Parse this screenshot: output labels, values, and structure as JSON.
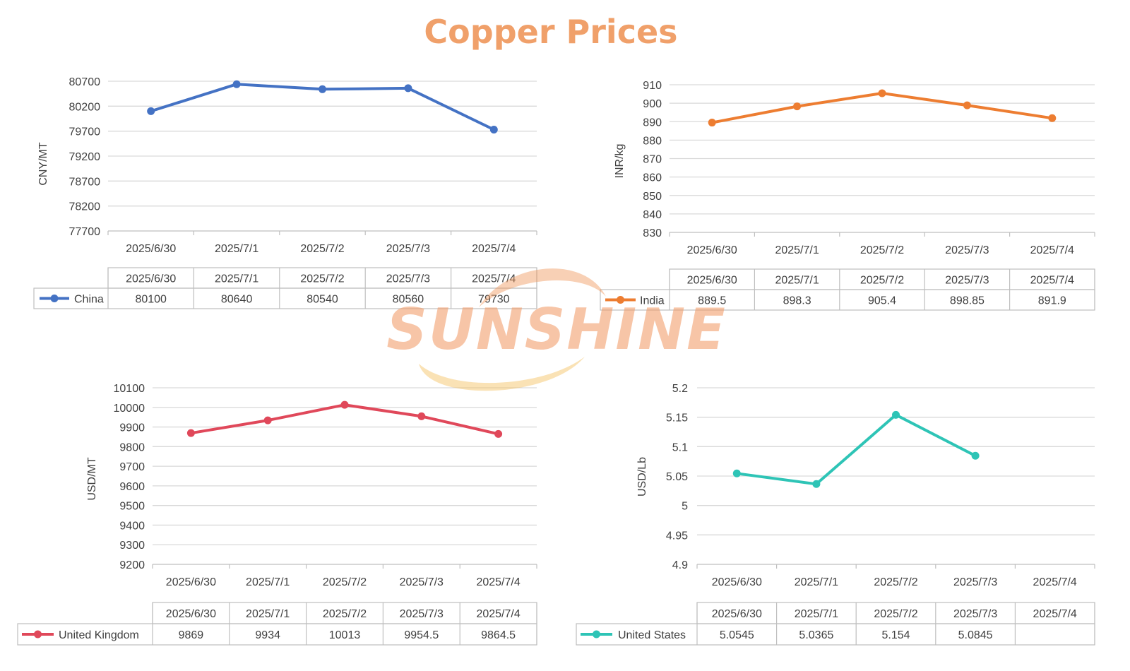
{
  "title": "Copper Prices",
  "watermark": "SUNSHINE",
  "chart_data": [
    {
      "type": "line",
      "x": [
        "2025/6/30",
        "2025/7/1",
        "2025/7/2",
        "2025/7/3",
        "2025/7/4"
      ],
      "series": [
        {
          "name": "China",
          "values": [
            80100,
            80640,
            80540,
            80560,
            79730
          ],
          "labels": [
            "80100",
            "80640",
            "80540",
            "80560",
            "79730"
          ],
          "color": "#4472C4"
        }
      ],
      "ylabel": "CNY/MT",
      "yticks": [
        80700,
        80200,
        79700,
        79200,
        78700,
        78200,
        77700
      ],
      "ylim": [
        77700,
        80700
      ],
      "grid": true,
      "legend": "data table"
    },
    {
      "type": "line",
      "x": [
        "2025/6/30",
        "2025/7/1",
        "2025/7/2",
        "2025/7/3",
        "2025/7/4"
      ],
      "series": [
        {
          "name": "India",
          "values": [
            889.5,
            898.3,
            905.4,
            898.85,
            891.9
          ],
          "labels": [
            "889.5",
            "898.3",
            "905.4",
            "898.85",
            "891.9"
          ],
          "color": "#ED7D31"
        }
      ],
      "ylabel": "INR/kg",
      "yticks": [
        910,
        900,
        890,
        880,
        870,
        860,
        850,
        840,
        830
      ],
      "ylim": [
        830,
        910
      ],
      "grid": true,
      "legend": "data table"
    },
    {
      "type": "line",
      "x": [
        "2025/6/30",
        "2025/7/1",
        "2025/7/2",
        "2025/7/3",
        "2025/7/4"
      ],
      "series": [
        {
          "name": "United Kingdom",
          "values": [
            9869,
            9934,
            10013,
            9954.5,
            9864.5
          ],
          "labels": [
            "9869",
            "9934",
            "10013",
            "9954.5",
            "9864.5"
          ],
          "color": "#E0485A"
        }
      ],
      "ylabel": "USD/MT",
      "yticks": [
        10100,
        10000,
        9900,
        9800,
        9700,
        9600,
        9500,
        9400,
        9300,
        9200
      ],
      "ylim": [
        9200,
        10100
      ],
      "grid": true,
      "legend": "data table"
    },
    {
      "type": "line",
      "x": [
        "2025/6/30",
        "2025/7/1",
        "2025/7/2",
        "2025/7/3",
        "2025/7/4"
      ],
      "series": [
        {
          "name": "United States",
          "values": [
            5.0545,
            5.0365,
            5.154,
            5.0845,
            null
          ],
          "labels": [
            "5.0545",
            "5.0365",
            "5.154",
            "5.0845",
            ""
          ],
          "color": "#2EC4B6"
        }
      ],
      "ylabel": "USD/Lb",
      "yticks": [
        "5.2",
        "5.15",
        "5.1",
        "5.05",
        "5",
        "4.95",
        "4.9"
      ],
      "ylim": [
        4.9,
        5.2
      ],
      "grid": true,
      "legend": "data table"
    }
  ]
}
